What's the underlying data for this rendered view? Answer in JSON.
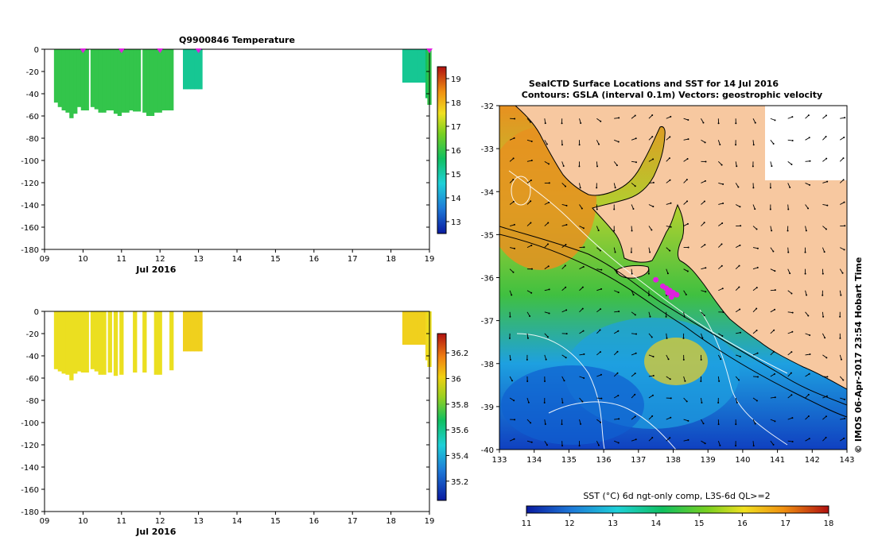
{
  "chart_data": [
    {
      "type": "bar",
      "title": "Q9900846  Temperature",
      "xlabel": "Jul 2016",
      "ylim": [
        -180,
        0
      ],
      "xlim": [
        9,
        19
      ],
      "xticks": [
        "09",
        "10",
        "11",
        "12",
        "13",
        "14",
        "15",
        "16",
        "17",
        "18",
        "19"
      ],
      "yticks": [
        0,
        -20,
        -40,
        -60,
        -80,
        -100,
        -120,
        -140,
        -160,
        -180
      ],
      "colorbar": {
        "min": 12.5,
        "max": 19.5,
        "ticks": [
          13,
          14,
          15,
          16,
          17,
          18,
          19
        ]
      },
      "markers_x": [
        10.0,
        11.0,
        12.0,
        13.0,
        19.0
      ],
      "profiles": [
        {
          "x": 9.3,
          "depth": -48,
          "value": 16.0
        },
        {
          "x": 9.4,
          "depth": -52,
          "value": 16.0
        },
        {
          "x": 9.5,
          "depth": -55,
          "value": 16.0
        },
        {
          "x": 9.6,
          "depth": -57,
          "value": 16.0
        },
        {
          "x": 9.7,
          "depth": -62,
          "value": 16.0
        },
        {
          "x": 9.8,
          "depth": -58,
          "value": 16.0
        },
        {
          "x": 9.9,
          "depth": -52,
          "value": 16.0
        },
        {
          "x": 10.0,
          "depth": -55,
          "value": 16.0
        },
        {
          "x": 10.1,
          "depth": -55,
          "value": 16.0
        },
        {
          "x": 10.25,
          "depth": -52,
          "value": 16.0
        },
        {
          "x": 10.35,
          "depth": -54,
          "value": 16.0
        },
        {
          "x": 10.45,
          "depth": -57,
          "value": 16.0
        },
        {
          "x": 10.55,
          "depth": -57,
          "value": 16.0
        },
        {
          "x": 10.65,
          "depth": -55,
          "value": 16.0
        },
        {
          "x": 10.75,
          "depth": -55,
          "value": 16.0
        },
        {
          "x": 10.85,
          "depth": -58,
          "value": 16.0
        },
        {
          "x": 10.95,
          "depth": -60,
          "value": 16.0
        },
        {
          "x": 11.05,
          "depth": -57,
          "value": 16.0
        },
        {
          "x": 11.15,
          "depth": -57,
          "value": 16.0
        },
        {
          "x": 11.25,
          "depth": -55,
          "value": 16.0
        },
        {
          "x": 11.35,
          "depth": -56,
          "value": 16.0
        },
        {
          "x": 11.45,
          "depth": -56,
          "value": 16.0
        },
        {
          "x": 11.6,
          "depth": -57,
          "value": 16.0
        },
        {
          "x": 11.7,
          "depth": -60,
          "value": 16.0
        },
        {
          "x": 11.8,
          "depth": -60,
          "value": 16.0
        },
        {
          "x": 11.9,
          "depth": -57,
          "value": 16.0
        },
        {
          "x": 12.0,
          "depth": -57,
          "value": 16.0
        },
        {
          "x": 12.1,
          "depth": -55,
          "value": 16.0
        },
        {
          "x": 12.2,
          "depth": -55,
          "value": 16.0
        },
        {
          "x": 12.3,
          "depth": -55,
          "value": 16.0
        },
        {
          "x": 12.65,
          "depth": -36,
          "value": 15.2
        },
        {
          "x": 12.75,
          "depth": -36,
          "value": 15.2
        },
        {
          "x": 12.85,
          "depth": -36,
          "value": 15.2
        },
        {
          "x": 12.95,
          "depth": -36,
          "value": 15.2
        },
        {
          "x": 13.05,
          "depth": -36,
          "value": 15.2
        },
        {
          "x": 18.35,
          "depth": -30,
          "value": 15.2
        },
        {
          "x": 18.45,
          "depth": -30,
          "value": 15.2
        },
        {
          "x": 18.55,
          "depth": -30,
          "value": 15.2
        },
        {
          "x": 18.65,
          "depth": -30,
          "value": 15.2
        },
        {
          "x": 18.75,
          "depth": -30,
          "value": 15.2
        },
        {
          "x": 18.85,
          "depth": -30,
          "value": 15.2
        },
        {
          "x": 18.95,
          "depth": -44,
          "value": 15.7
        },
        {
          "x": 19.0,
          "depth": -50,
          "value": 16.0
        }
      ]
    },
    {
      "type": "bar",
      "title": "",
      "xlabel": "Jul 2016",
      "ylim": [
        -180,
        0
      ],
      "xlim": [
        9,
        19
      ],
      "xticks": [
        "09",
        "10",
        "11",
        "12",
        "13",
        "14",
        "15",
        "16",
        "17",
        "18",
        "19"
      ],
      "yticks": [
        0,
        -20,
        -40,
        -60,
        -80,
        -100,
        -120,
        -140,
        -160,
        -180
      ],
      "colorbar": {
        "min": 35.05,
        "max": 36.35,
        "ticks": [
          35.2,
          35.4,
          35.6,
          35.8,
          36,
          36.2
        ]
      },
      "profiles": [
        {
          "x": 9.3,
          "depth": -52,
          "value": 35.98
        },
        {
          "x": 9.4,
          "depth": -54,
          "value": 35.98
        },
        {
          "x": 9.5,
          "depth": -56,
          "value": 35.98
        },
        {
          "x": 9.6,
          "depth": -57,
          "value": 35.98
        },
        {
          "x": 9.7,
          "depth": -62,
          "value": 35.98
        },
        {
          "x": 9.8,
          "depth": -56,
          "value": 35.98
        },
        {
          "x": 9.9,
          "depth": -54,
          "value": 35.98
        },
        {
          "x": 10.0,
          "depth": -55,
          "value": 35.98
        },
        {
          "x": 10.1,
          "depth": -55,
          "value": 35.98
        },
        {
          "x": 10.25,
          "depth": -52,
          "value": 35.98
        },
        {
          "x": 10.35,
          "depth": -54,
          "value": 35.98
        },
        {
          "x": 10.45,
          "depth": -57,
          "value": 35.98
        },
        {
          "x": 10.55,
          "depth": -57,
          "value": 35.98
        },
        {
          "x": 10.7,
          "depth": -55,
          "value": 35.98
        },
        {
          "x": 10.85,
          "depth": -58,
          "value": 35.98
        },
        {
          "x": 11.0,
          "depth": -57,
          "value": 35.98
        },
        {
          "x": 11.35,
          "depth": -55,
          "value": 35.98
        },
        {
          "x": 11.6,
          "depth": -55,
          "value": 35.98
        },
        {
          "x": 11.9,
          "depth": -57,
          "value": 35.98
        },
        {
          "x": 12.0,
          "depth": -57,
          "value": 35.98
        },
        {
          "x": 12.3,
          "depth": -53,
          "value": 35.98
        },
        {
          "x": 12.65,
          "depth": -36,
          "value": 36.02
        },
        {
          "x": 12.75,
          "depth": -36,
          "value": 36.02
        },
        {
          "x": 12.85,
          "depth": -36,
          "value": 36.02
        },
        {
          "x": 12.95,
          "depth": -36,
          "value": 36.02
        },
        {
          "x": 13.05,
          "depth": -36,
          "value": 36.02
        },
        {
          "x": 18.35,
          "depth": -30,
          "value": 36.02
        },
        {
          "x": 18.45,
          "depth": -30,
          "value": 36.02
        },
        {
          "x": 18.55,
          "depth": -30,
          "value": 36.02
        },
        {
          "x": 18.65,
          "depth": -30,
          "value": 36.02
        },
        {
          "x": 18.75,
          "depth": -30,
          "value": 36.02
        },
        {
          "x": 18.85,
          "depth": -30,
          "value": 36.02
        },
        {
          "x": 18.95,
          "depth": -44,
          "value": 36.0
        },
        {
          "x": 19.0,
          "depth": -50,
          "value": 35.98
        }
      ]
    },
    {
      "type": "heatmap",
      "title": "SealCTD Surface Locations and SST for 14 Jul 2016",
      "subtitle": "Contours: GSLA (interval 0.1m) Vectors: geostrophic velocity",
      "xlim": [
        133,
        143
      ],
      "ylim": [
        -40,
        -32
      ],
      "xticks": [
        133,
        134,
        135,
        136,
        137,
        138,
        139,
        140,
        141,
        142,
        143
      ],
      "yticks": [
        -32,
        -33,
        -34,
        -35,
        -36,
        -37,
        -38,
        -39,
        -40
      ],
      "colorbar": {
        "label": "SST (°C) 6d ngt-only comp, L3S-6d QL>=2",
        "min": 11,
        "max": 18,
        "ticks": [
          11,
          12,
          13,
          14,
          15,
          16,
          17,
          18
        ]
      },
      "credit": "© IMOS 06-Apr-2017 23:54 Hobart Time",
      "land_color": "#f7c8a0",
      "locations": [
        {
          "lon": 137.5,
          "lat": -36.05
        },
        {
          "lon": 137.7,
          "lat": -36.2
        },
        {
          "lon": 137.8,
          "lat": -36.25
        },
        {
          "lon": 137.9,
          "lat": -36.3
        },
        {
          "lon": 138.0,
          "lat": -36.35
        },
        {
          "lon": 138.1,
          "lat": -36.4
        },
        {
          "lon": 137.95,
          "lat": -36.45
        },
        {
          "lon": 137.85,
          "lat": -36.35
        }
      ]
    }
  ]
}
